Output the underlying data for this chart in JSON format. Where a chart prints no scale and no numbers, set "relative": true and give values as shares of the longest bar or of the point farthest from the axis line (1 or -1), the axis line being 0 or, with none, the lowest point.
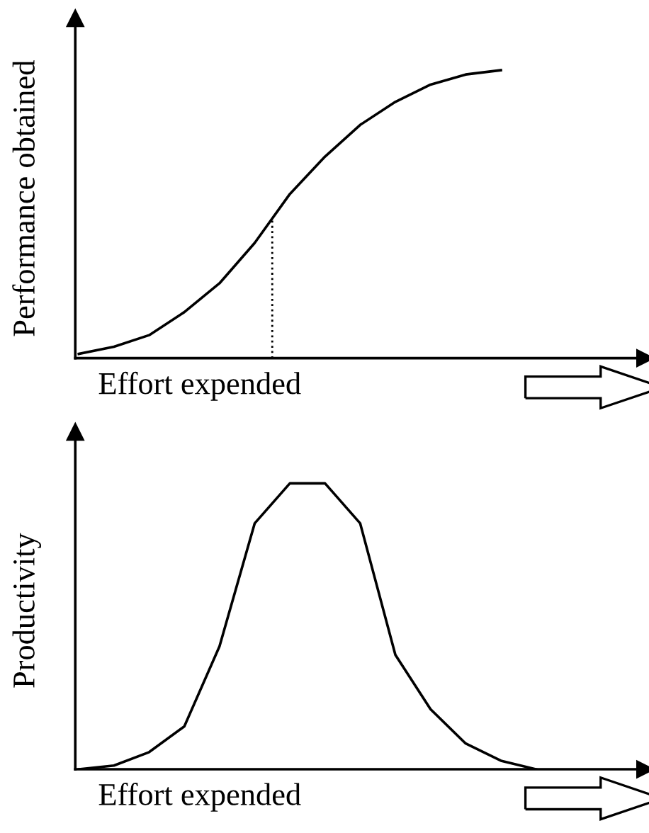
{
  "chart_data": [
    {
      "type": "line",
      "relative": true,
      "ylabel": "Performance obtained",
      "xlabel": "Effort expended",
      "categories": [
        null,
        null,
        null,
        null,
        null,
        null,
        null,
        null,
        null,
        null,
        null,
        null,
        null,
        null,
        null,
        null,
        null
      ],
      "series": [
        {
          "color": "#000000",
          "values": [
            0.015,
            0.04,
            0.08,
            0.16,
            0.26,
            0.4,
            0.57,
            0.7,
            0.81,
            0.89,
            0.95,
            0.985,
            1.0,
            null,
            null,
            null,
            null
          ]
        }
      ]
    },
    {
      "type": "line",
      "relative": true,
      "ylabel": "Productivity",
      "xlabel": "Effort expended",
      "categories": [
        null,
        null,
        null,
        null,
        null,
        null,
        null,
        null,
        null,
        null,
        null,
        null,
        null,
        null,
        null,
        null,
        null
      ],
      "series": [
        {
          "color": "#000000",
          "values": [
            0,
            0.013,
            0.06,
            0.15,
            0.43,
            0.86,
            1.0,
            1.0,
            0.86,
            0.4,
            0.21,
            0.09,
            0.03,
            0,
            null,
            null,
            null
          ]
        }
      ]
    }
  ]
}
